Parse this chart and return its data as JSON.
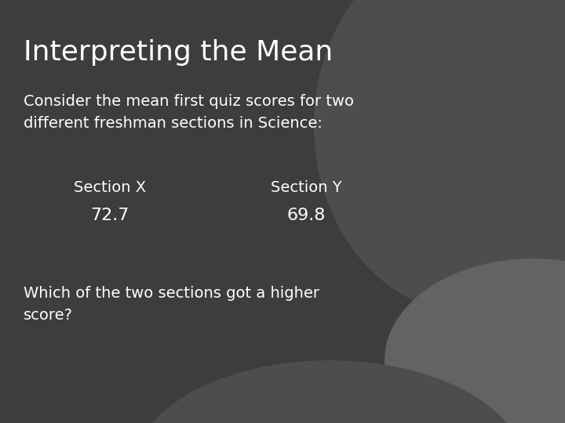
{
  "title": "Interpreting the Mean",
  "body_text": "Consider the mean first quiz scores for two\ndifferent freshman sections in Science:",
  "section_x_label": "Section X",
  "section_x_value": "72.7",
  "section_y_label": "Section Y",
  "section_y_value": "69.8",
  "question": "Which of the two sections got a higher\nscore?",
  "bg_color_main": "#3d3d3d",
  "circle_color": "#4d4d4d",
  "bottom_right_color": "#636363",
  "text_color": "#ffffff",
  "title_fontsize": 26,
  "body_fontsize": 14,
  "section_label_fontsize": 14,
  "section_value_fontsize": 16,
  "question_fontsize": 14
}
